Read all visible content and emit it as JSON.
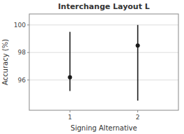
{
  "chart_data": {
    "type": "scatter",
    "title": "Interchange Layout L",
    "x_label": "Signing Alternative",
    "y_label": "Accuracy (%)",
    "x": [
      1,
      2
    ],
    "values": [
      96.2,
      98.5
    ],
    "upper": [
      99.5,
      100.0
    ],
    "lower": [
      95.2,
      94.5
    ],
    "color": "#1a1a1a",
    "xlim": [
      0.4,
      2.6
    ],
    "xticks": [
      1,
      2
    ],
    "ylim": [
      93.8,
      100.8
    ],
    "yticks": [
      96,
      98,
      100
    ],
    "grid": "y"
  }
}
